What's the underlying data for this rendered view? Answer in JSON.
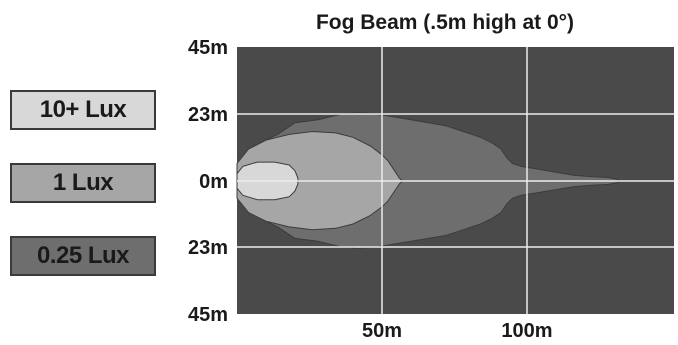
{
  "chart_data": {
    "type": "heatmap",
    "title": "Fog Beam (.5m high at 0°)",
    "xlabel": "",
    "ylabel": "",
    "x_ticks": [
      {
        "value": 50,
        "label": "50m"
      },
      {
        "value": 100,
        "label": "100m"
      }
    ],
    "y_ticks": [
      {
        "value": 45,
        "label": "45m"
      },
      {
        "value": 23,
        "label": "23m"
      },
      {
        "value": 0,
        "label": "0m"
      },
      {
        "value": -23,
        "label": "23m"
      },
      {
        "value": -45,
        "label": "45m"
      }
    ],
    "xlim": [
      0,
      150
    ],
    "ylim": [
      -45,
      45
    ],
    "grid": true,
    "legend_position": "left",
    "background_color": "#4a4a4a",
    "grid_color": "#ececec",
    "legend": [
      {
        "label": "10+ Lux",
        "color": "#d8d8d8"
      },
      {
        "label": "1 Lux",
        "color": "#a6a6a6"
      },
      {
        "label": "0.25 Lux",
        "color": "#6e6e6e"
      }
    ],
    "series": [
      {
        "name": "0.25 Lux",
        "color": "#6e6e6e",
        "outline": [
          [
            0,
            0
          ],
          [
            0,
            2
          ],
          [
            3,
            8
          ],
          [
            8,
            13
          ],
          [
            14,
            16
          ],
          [
            20,
            20
          ],
          [
            28,
            21
          ],
          [
            36,
            23
          ],
          [
            42,
            23.5
          ],
          [
            48,
            23
          ],
          [
            54,
            22
          ],
          [
            60,
            21
          ],
          [
            66,
            20
          ],
          [
            72,
            19
          ],
          [
            78,
            17
          ],
          [
            84,
            15
          ],
          [
            88,
            13
          ],
          [
            91,
            11
          ],
          [
            93,
            8
          ],
          [
            95,
            6
          ],
          [
            98,
            5
          ],
          [
            104,
            4
          ],
          [
            110,
            3
          ],
          [
            116,
            2
          ],
          [
            122,
            1.5
          ],
          [
            128,
            1.2
          ],
          [
            131,
            0.6
          ],
          [
            132,
            0
          ],
          [
            131,
            -0.6
          ],
          [
            128,
            -1.2
          ],
          [
            122,
            -1.5
          ],
          [
            116,
            -2
          ],
          [
            110,
            -3
          ],
          [
            104,
            -4
          ],
          [
            98,
            -5
          ],
          [
            95,
            -6
          ],
          [
            93,
            -8
          ],
          [
            91,
            -11
          ],
          [
            88,
            -13
          ],
          [
            84,
            -15
          ],
          [
            78,
            -17
          ],
          [
            72,
            -19
          ],
          [
            66,
            -20
          ],
          [
            60,
            -21
          ],
          [
            54,
            -22
          ],
          [
            48,
            -23
          ],
          [
            42,
            -23.5
          ],
          [
            36,
            -23
          ],
          [
            28,
            -21
          ],
          [
            20,
            -20
          ],
          [
            14,
            -16
          ],
          [
            8,
            -13
          ],
          [
            3,
            -8
          ],
          [
            0,
            -2
          ]
        ]
      },
      {
        "name": "1 Lux",
        "color": "#a6a6a6",
        "outline": [
          [
            0,
            0
          ],
          [
            0,
            6
          ],
          [
            4,
            11
          ],
          [
            10,
            14
          ],
          [
            18,
            16
          ],
          [
            26,
            17
          ],
          [
            34,
            16.5
          ],
          [
            40,
            15
          ],
          [
            46,
            12
          ],
          [
            50,
            9
          ],
          [
            52,
            7
          ],
          [
            54,
            4
          ],
          [
            56,
            1
          ],
          [
            57,
            0
          ],
          [
            56,
            -1
          ],
          [
            54,
            -4
          ],
          [
            52,
            -7
          ],
          [
            50,
            -9
          ],
          [
            46,
            -12
          ],
          [
            40,
            -15
          ],
          [
            34,
            -16.5
          ],
          [
            26,
            -17
          ],
          [
            18,
            -16
          ],
          [
            10,
            -14
          ],
          [
            4,
            -11
          ],
          [
            0,
            -6
          ]
        ]
      },
      {
        "name": "10+ Lux",
        "color": "#d8d8d8",
        "outline": [
          [
            0,
            0
          ],
          [
            0,
            2.5
          ],
          [
            2,
            5
          ],
          [
            7,
            6.5
          ],
          [
            13,
            6.5
          ],
          [
            18,
            5.5
          ],
          [
            20,
            3.5
          ],
          [
            21,
            1
          ],
          [
            21,
            -1
          ],
          [
            20,
            -3.5
          ],
          [
            18,
            -5.5
          ],
          [
            13,
            -6.5
          ],
          [
            7,
            -6.5
          ],
          [
            2,
            -5
          ],
          [
            0,
            -2.5
          ]
        ]
      }
    ]
  }
}
